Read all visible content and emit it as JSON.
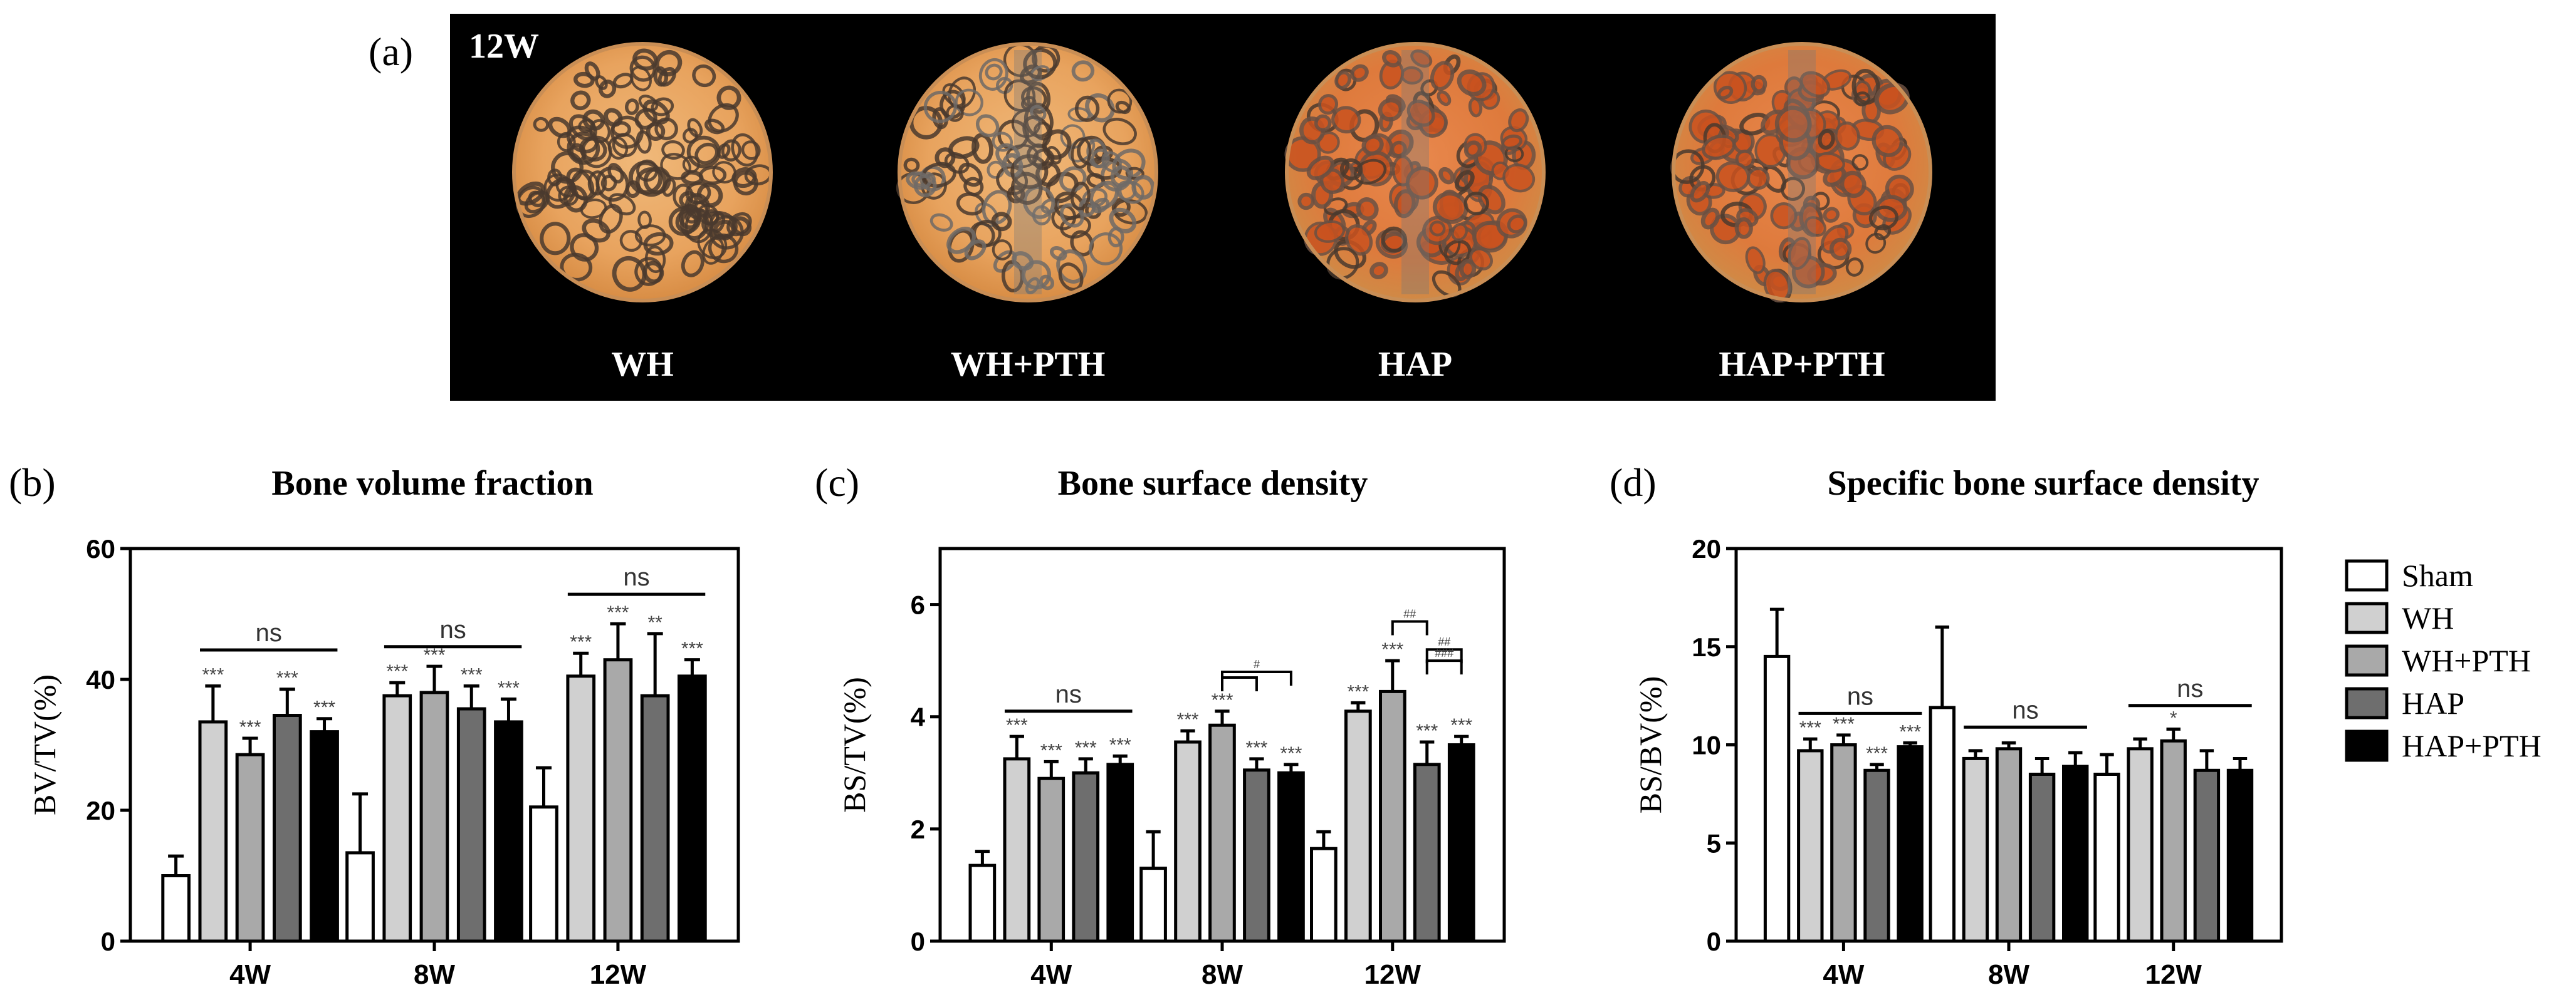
{
  "panel_a": {
    "letter": "(a)",
    "week": "12W",
    "samples": [
      {
        "label": "WH",
        "tone": "pale"
      },
      {
        "label": "WH+PTH",
        "tone": "pale-grey"
      },
      {
        "label": "HAP",
        "tone": "red"
      },
      {
        "label": "HAP+PTH",
        "tone": "red"
      }
    ]
  },
  "legend": {
    "entries": [
      {
        "name": "Sham",
        "color": "#ffffff"
      },
      {
        "name": "WH",
        "color": "#d0d0d0"
      },
      {
        "name": "WH+PTH",
        "color": "#a9a9a9"
      },
      {
        "name": "HAP",
        "color": "#6e6e6e"
      },
      {
        "name": "HAP+PTH",
        "color": "#000000"
      }
    ]
  },
  "chart_data": [
    {
      "type": "bar",
      "letter": "(b)",
      "title": "Bone volume fraction",
      "ylabel": "BV/TV(%)",
      "ylim": [
        0,
        60
      ],
      "yticks": [
        "0",
        "20",
        "40",
        "60"
      ],
      "categories": [
        "4W",
        "8W",
        "12W"
      ],
      "series": [
        {
          "name": "Sham",
          "values": [
            10,
            13.5,
            20.5
          ],
          "errors": [
            3,
            9,
            6
          ]
        },
        {
          "name": "WH",
          "values": [
            33.5,
            37.5,
            40.5
          ],
          "errors": [
            5.5,
            2,
            3.5
          ]
        },
        {
          "name": "WH+PTH",
          "values": [
            28.5,
            38,
            43
          ],
          "errors": [
            2.5,
            4,
            5.5
          ]
        },
        {
          "name": "HAP",
          "values": [
            34.5,
            35.5,
            37.5
          ],
          "errors": [
            4,
            3.5,
            9.5
          ]
        },
        {
          "name": "HAP+PTH",
          "values": [
            32,
            33.5,
            40.5
          ],
          "errors": [
            2,
            3.5,
            2.5
          ]
        }
      ],
      "significance": [
        [
          "",
          "***",
          "***",
          "***",
          "***"
        ],
        [
          "",
          "***",
          "***",
          "***",
          "***"
        ],
        [
          "",
          "***",
          "***",
          "**",
          "***"
        ]
      ],
      "ns_label": "ns",
      "ns_brackets": [
        {
          "category": 0,
          "y": 44.5
        },
        {
          "category": 1,
          "y": 45
        },
        {
          "category": 2,
          "y": 53
        }
      ],
      "hash_brackets": []
    },
    {
      "type": "bar",
      "letter": "(c)",
      "title": "Bone surface density",
      "ylabel": "BS/TV(%)",
      "ylim": [
        0,
        7
      ],
      "yticks": [
        "0",
        "2",
        "4",
        "6"
      ],
      "categories": [
        "4W",
        "8W",
        "12W"
      ],
      "series": [
        {
          "name": "Sham",
          "values": [
            1.35,
            1.3,
            1.65
          ],
          "errors": [
            0.25,
            0.65,
            0.3
          ]
        },
        {
          "name": "WH",
          "values": [
            3.25,
            3.55,
            4.1
          ],
          "errors": [
            0.4,
            0.2,
            0.15
          ]
        },
        {
          "name": "WH+PTH",
          "values": [
            2.9,
            3.85,
            4.45
          ],
          "errors": [
            0.3,
            0.25,
            0.55
          ]
        },
        {
          "name": "HAP",
          "values": [
            3.0,
            3.05,
            3.15
          ],
          "errors": [
            0.25,
            0.2,
            0.4
          ]
        },
        {
          "name": "HAP+PTH",
          "values": [
            3.15,
            3.0,
            3.5
          ],
          "errors": [
            0.15,
            0.15,
            0.15
          ]
        }
      ],
      "significance": [
        [
          "",
          "***",
          "***",
          "***",
          "***"
        ],
        [
          "",
          "***",
          "***",
          "***",
          "***"
        ],
        [
          "",
          "***",
          "***",
          "***",
          "***"
        ]
      ],
      "ns_label": "ns",
      "ns_brackets": [
        {
          "category": 0,
          "y": 4.1
        }
      ],
      "hash_brackets": [
        {
          "category": 1,
          "from": 2,
          "to": 3,
          "y": 4.7,
          "label": ""
        },
        {
          "category": 1,
          "from": 2,
          "to": 4,
          "y": 4.8,
          "label": "#"
        },
        {
          "category": 2,
          "from": 2,
          "to": 3,
          "y": 5.7,
          "label": "##"
        },
        {
          "category": 2,
          "from": 3,
          "to": 4,
          "y": 5.2,
          "label": "##"
        },
        {
          "category": 2,
          "from": 3,
          "to": 4,
          "y": 5.0,
          "label": "###"
        }
      ]
    },
    {
      "type": "bar",
      "letter": "(d)",
      "title": "Specific bone surface density",
      "ylabel": "BS/BV(%)",
      "ylim": [
        0,
        20
      ],
      "yticks": [
        "0",
        "5",
        "10",
        "15",
        "20"
      ],
      "categories": [
        "4W",
        "8W",
        "12W"
      ],
      "series": [
        {
          "name": "Sham",
          "values": [
            14.5,
            11.9,
            8.5
          ],
          "errors": [
            2.4,
            4.1,
            1.0
          ]
        },
        {
          "name": "WH",
          "values": [
            9.7,
            9.3,
            9.8
          ],
          "errors": [
            0.6,
            0.4,
            0.5
          ]
        },
        {
          "name": "WH+PTH",
          "values": [
            10.0,
            9.8,
            10.2
          ],
          "errors": [
            0.5,
            0.3,
            0.6
          ]
        },
        {
          "name": "HAP",
          "values": [
            8.7,
            8.5,
            8.7
          ],
          "errors": [
            0.3,
            0.8,
            1.0
          ]
        },
        {
          "name": "HAP+PTH",
          "values": [
            9.9,
            8.9,
            8.7
          ],
          "errors": [
            0.2,
            0.7,
            0.6
          ]
        }
      ],
      "significance": [
        [
          "",
          "***",
          "***",
          "***",
          "***"
        ],
        [
          "",
          "",
          "",
          "",
          ""
        ],
        [
          "",
          "",
          "*",
          "",
          ""
        ]
      ],
      "ns_label": "ns",
      "ns_brackets": [
        {
          "category": 0,
          "y": 11.6
        },
        {
          "category": 1,
          "y": 10.9
        },
        {
          "category": 2,
          "y": 12.0
        }
      ],
      "hash_brackets": []
    }
  ]
}
